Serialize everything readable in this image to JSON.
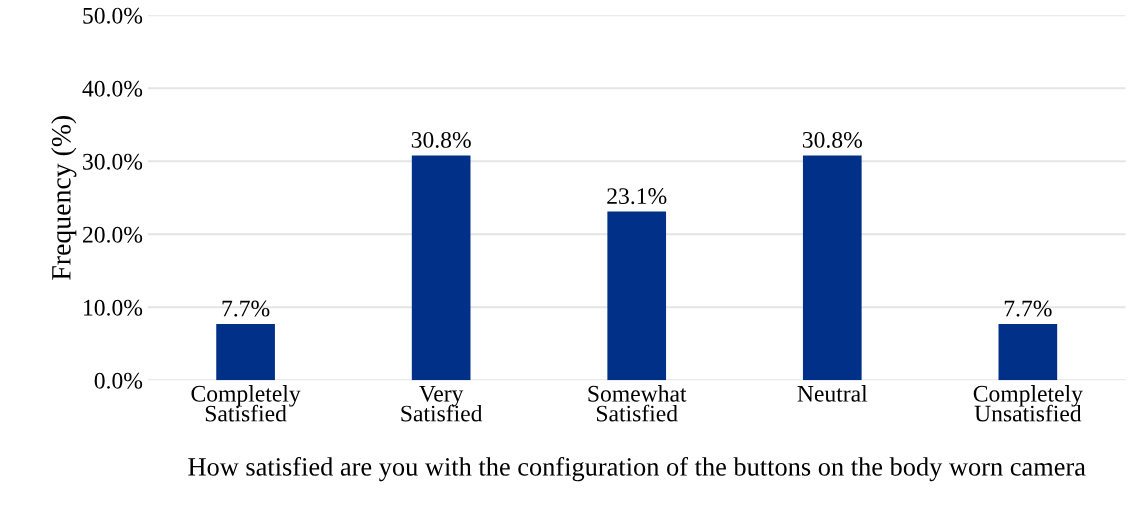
{
  "chart_data": {
    "type": "bar",
    "xlabel": "How satisfied are you with the configuration of the buttons on the body worn camera",
    "ylabel": "Frequency (%)",
    "categories": [
      "Completely\nSatisfied",
      "Very\nSatisfied",
      "Somewhat\nSatisfied",
      "Neutral",
      "Completely\nUnsatisfied"
    ],
    "values": [
      7.7,
      30.8,
      23.1,
      30.8,
      7.7
    ],
    "color": "#003087",
    "value_labels": [
      "7.7%",
      "30.8%",
      "23.1%",
      "30.8%",
      "7.7%"
    ],
    "ylim": [
      0,
      50
    ],
    "yticks": [
      {
        "value": 0,
        "label": "0.0%"
      },
      {
        "value": 10,
        "label": "10.0%"
      },
      {
        "value": 20,
        "label": "20.0%"
      },
      {
        "value": 30,
        "label": "30.0%"
      },
      {
        "value": 40,
        "label": "40.0%"
      },
      {
        "value": 50,
        "label": "50.0%"
      }
    ],
    "grid": "y"
  }
}
